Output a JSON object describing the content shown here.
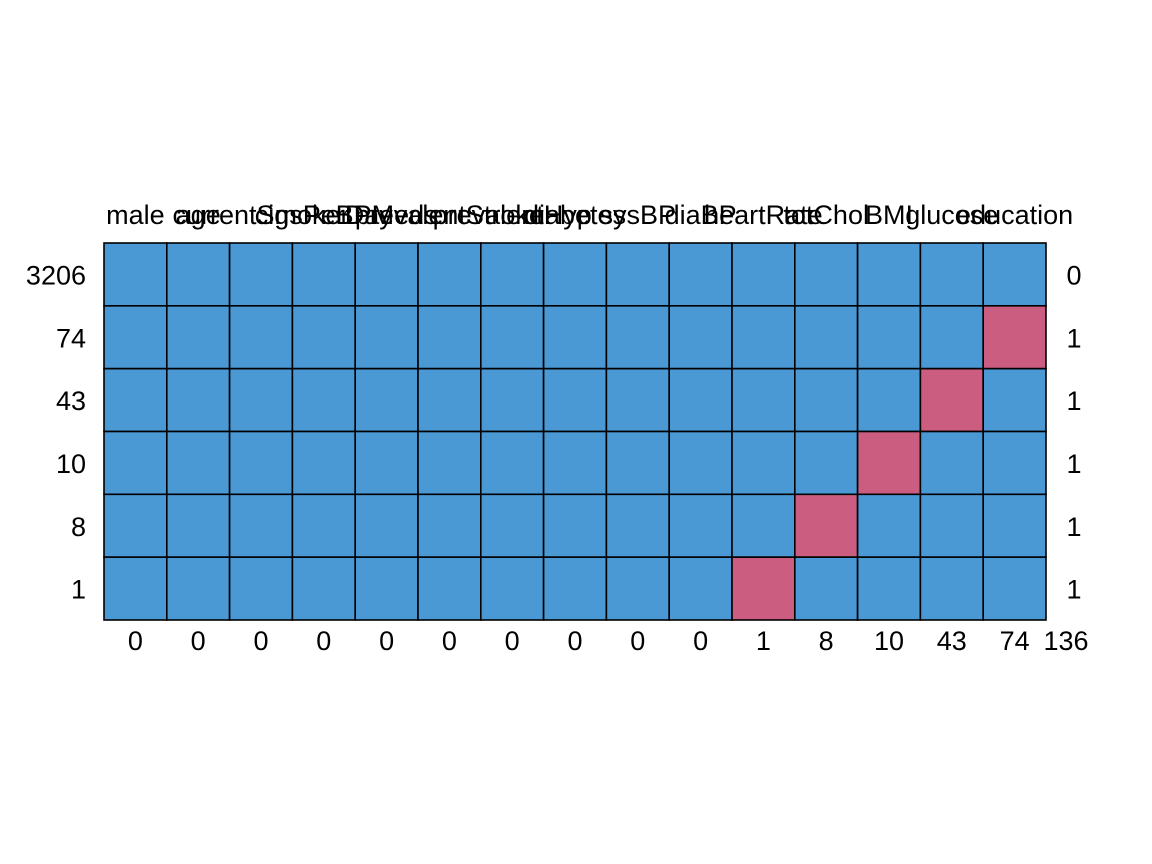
{
  "chart_data": {
    "type": "heatmap",
    "title": "",
    "variables": [
      "male",
      "age",
      "currentSmoker",
      "cigsPerDay",
      "BPMeds",
      "prevalentStroke",
      "prevalentHyp",
      "diabetes",
      "sysBP",
      "diaBP",
      "heartRate",
      "totChol",
      "BMI",
      "glucose",
      "education"
    ],
    "column_missing_counts": [
      0,
      0,
      0,
      0,
      0,
      0,
      0,
      0,
      0,
      0,
      1,
      8,
      10,
      43,
      74
    ],
    "total_missing": 136,
    "row_frequencies": [
      3206,
      74,
      43,
      10,
      8,
      1
    ],
    "row_missing_counts": [
      0,
      1,
      1,
      1,
      1,
      1
    ],
    "patterns": [
      [
        0,
        0,
        0,
        0,
        0,
        0,
        0,
        0,
        0,
        0,
        0,
        0,
        0,
        0,
        0
      ],
      [
        0,
        0,
        0,
        0,
        0,
        0,
        0,
        0,
        0,
        0,
        0,
        0,
        0,
        0,
        1
      ],
      [
        0,
        0,
        0,
        0,
        0,
        0,
        0,
        0,
        0,
        0,
        0,
        0,
        0,
        1,
        0
      ],
      [
        0,
        0,
        0,
        0,
        0,
        0,
        0,
        0,
        0,
        0,
        0,
        0,
        1,
        0,
        0
      ],
      [
        0,
        0,
        0,
        0,
        0,
        0,
        0,
        0,
        0,
        0,
        0,
        1,
        0,
        0,
        0
      ],
      [
        0,
        0,
        0,
        0,
        0,
        0,
        0,
        0,
        0,
        0,
        1,
        0,
        0,
        0,
        0
      ]
    ],
    "colors": {
      "observed": "#4A98D4",
      "missing": "#CB5D80",
      "grid": "#000000"
    }
  }
}
